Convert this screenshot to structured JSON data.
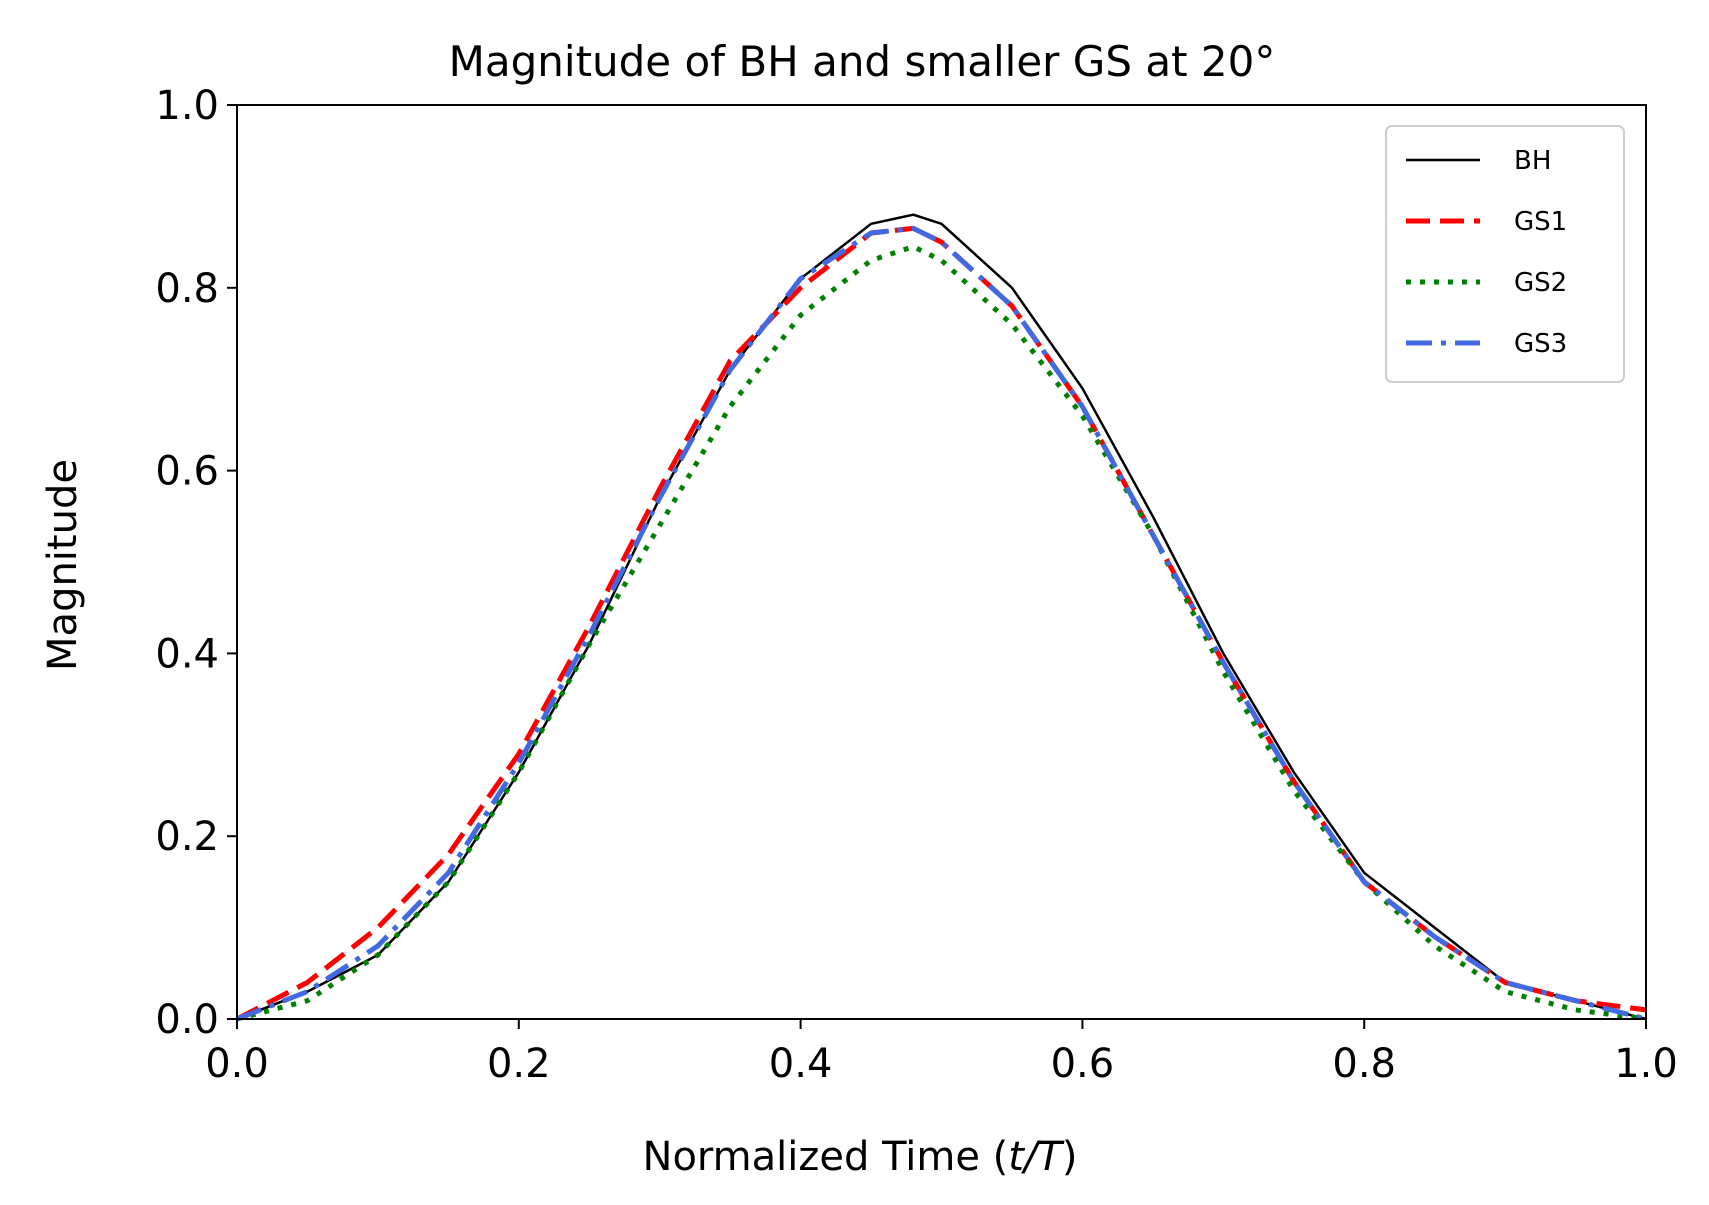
{
  "chart_data": {
    "type": "line",
    "title": "Magnitude of BH and smaller GS at 20°",
    "xlabel": {
      "text": "Normalized Time (",
      "italic": "t/T",
      "suffix": ")"
    },
    "ylabel": "Magnitude",
    "xlim": [
      0.0,
      1.0
    ],
    "ylim": [
      0.0,
      1.0
    ],
    "xticks": [
      0.0,
      0.2,
      0.4,
      0.6,
      0.8,
      1.0
    ],
    "xtick_labels": [
      "0.0",
      "0.2",
      "0.4",
      "0.6",
      "0.8",
      "1.0"
    ],
    "yticks": [
      0.0,
      0.2,
      0.4,
      0.6,
      0.8,
      1.0
    ],
    "ytick_labels": [
      "0.0",
      "0.2",
      "0.4",
      "0.6",
      "0.8",
      "1.0"
    ],
    "grid": false,
    "legend_position": "top-right",
    "x": [
      0.0,
      0.05,
      0.1,
      0.15,
      0.2,
      0.25,
      0.3,
      0.35,
      0.4,
      0.45,
      0.48,
      0.5,
      0.55,
      0.6,
      0.65,
      0.7,
      0.75,
      0.8,
      0.85,
      0.9,
      0.95,
      1.0
    ],
    "series": [
      {
        "name": "BH",
        "color": "#000000",
        "style": "solid",
        "values": [
          0.0,
          0.03,
          0.07,
          0.15,
          0.27,
          0.41,
          0.57,
          0.71,
          0.81,
          0.87,
          0.88,
          0.87,
          0.8,
          0.69,
          0.55,
          0.4,
          0.27,
          0.16,
          0.1,
          0.04,
          0.02,
          0.0
        ]
      },
      {
        "name": "GS1",
        "color": "#ff0000",
        "style": "dashed",
        "values": [
          0.0,
          0.04,
          0.1,
          0.18,
          0.29,
          0.43,
          0.58,
          0.72,
          0.8,
          0.86,
          0.865,
          0.85,
          0.78,
          0.67,
          0.53,
          0.39,
          0.26,
          0.15,
          0.09,
          0.04,
          0.02,
          0.01
        ]
      },
      {
        "name": "GS2",
        "color": "#008000",
        "style": "dotted",
        "values": [
          0.0,
          0.02,
          0.07,
          0.15,
          0.27,
          0.41,
          0.54,
          0.67,
          0.77,
          0.83,
          0.845,
          0.83,
          0.76,
          0.66,
          0.53,
          0.38,
          0.25,
          0.15,
          0.08,
          0.03,
          0.01,
          0.0
        ]
      },
      {
        "name": "GS3",
        "color": "#4169e1",
        "style": "dashdot",
        "values": [
          0.0,
          0.03,
          0.08,
          0.16,
          0.28,
          0.42,
          0.57,
          0.71,
          0.81,
          0.86,
          0.865,
          0.85,
          0.78,
          0.67,
          0.53,
          0.39,
          0.26,
          0.15,
          0.09,
          0.04,
          0.02,
          0.0
        ]
      }
    ]
  }
}
